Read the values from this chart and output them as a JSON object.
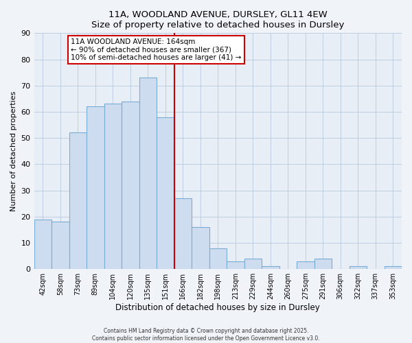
{
  "title": "11A, WOODLAND AVENUE, DURSLEY, GL11 4EW",
  "subtitle": "Size of property relative to detached houses in Dursley",
  "xlabel": "Distribution of detached houses by size in Dursley",
  "ylabel": "Number of detached properties",
  "bar_labels": [
    "42sqm",
    "58sqm",
    "73sqm",
    "89sqm",
    "104sqm",
    "120sqm",
    "135sqm",
    "151sqm",
    "166sqm",
    "182sqm",
    "198sqm",
    "213sqm",
    "229sqm",
    "244sqm",
    "260sqm",
    "275sqm",
    "291sqm",
    "306sqm",
    "322sqm",
    "337sqm",
    "353sqm"
  ],
  "bar_values": [
    19,
    18,
    52,
    62,
    63,
    64,
    73,
    58,
    27,
    16,
    8,
    3,
    4,
    1,
    0,
    3,
    4,
    0,
    1,
    0,
    1
  ],
  "bar_color": "#cddcef",
  "bar_edge_color": "#7aadd4",
  "vline_color": "#cc0000",
  "vline_index": 8,
  "ylim": [
    0,
    90
  ],
  "yticks": [
    0,
    10,
    20,
    30,
    40,
    50,
    60,
    70,
    80,
    90
  ],
  "annotation_title": "11A WOODLAND AVENUE: 164sqm",
  "annotation_line1": "← 90% of detached houses are smaller (367)",
  "annotation_line2": "10% of semi-detached houses are larger (41) →",
  "footer_line1": "Contains HM Land Registry data © Crown copyright and database right 2025.",
  "footer_line2": "Contains public sector information licensed under the Open Government Licence v3.0.",
  "bg_color": "#f0f4f9",
  "plot_bg_color": "#e8eef6",
  "grid_color": "#b8c8dc"
}
